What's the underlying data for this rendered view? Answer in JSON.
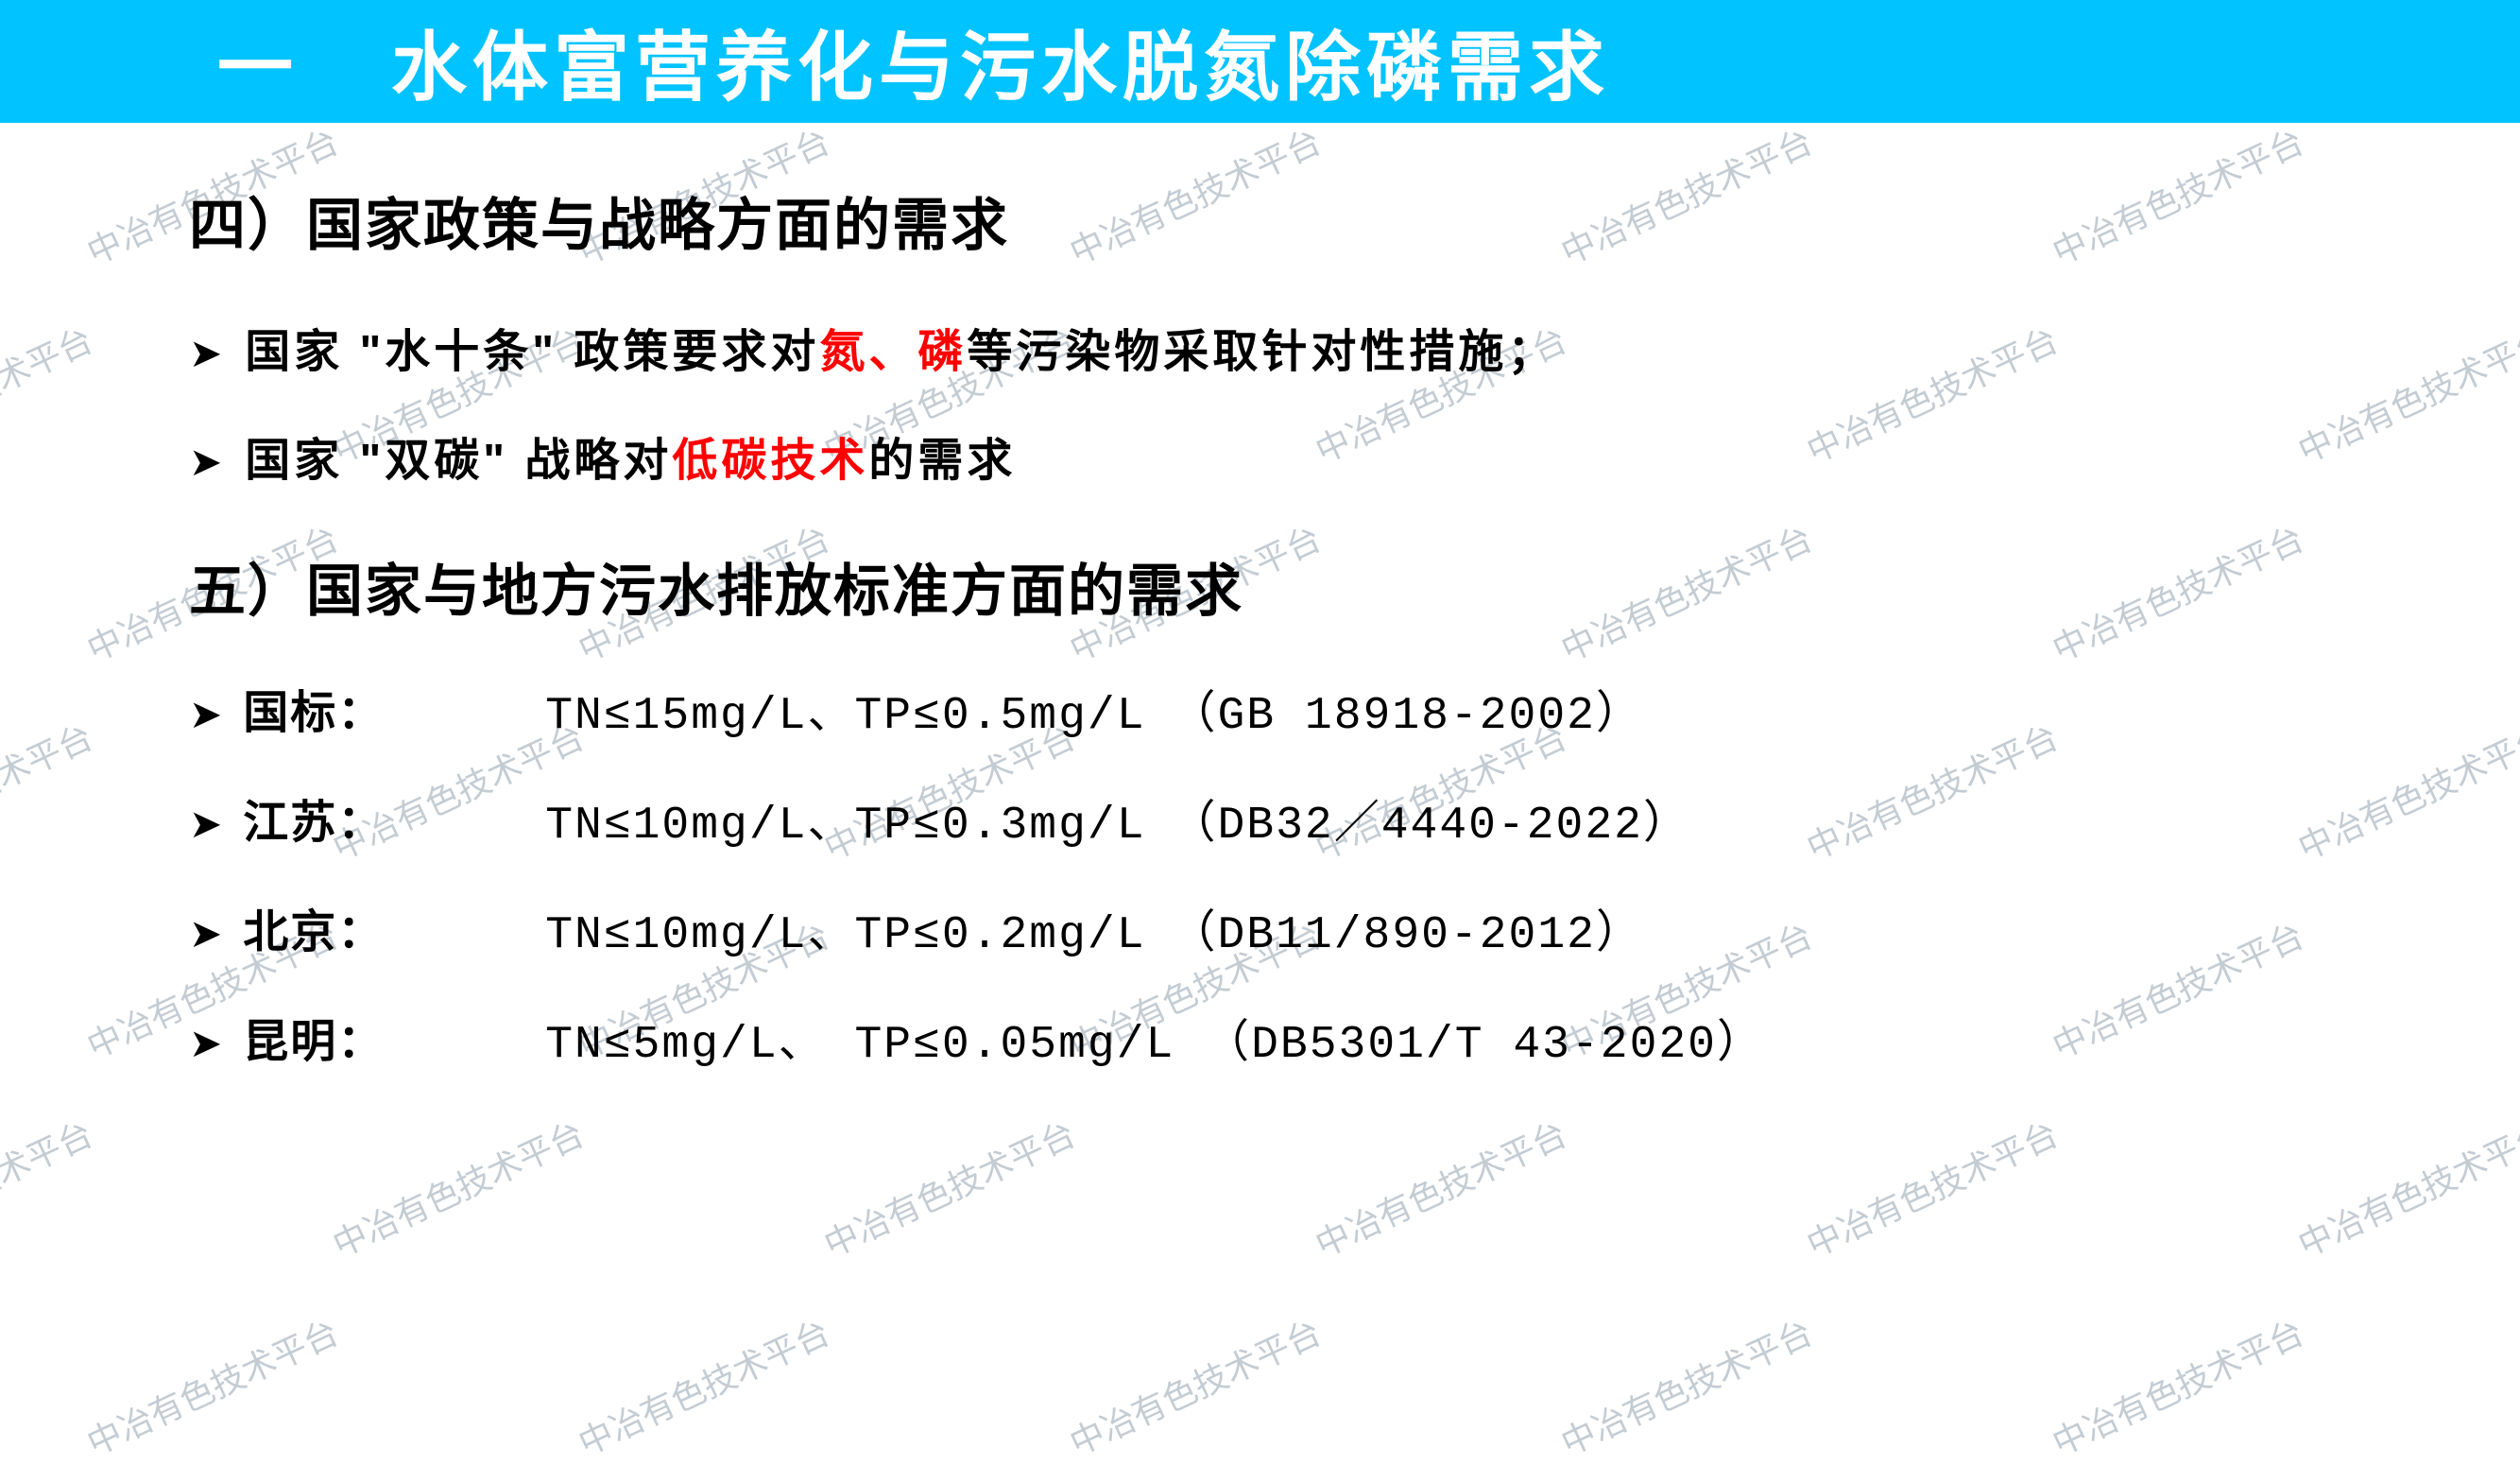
{
  "watermark": {
    "text": "中冶有色技术平台",
    "color": "#8a9ba8",
    "fontsize": 36,
    "rotation_deg": -25,
    "opacity": 0.5
  },
  "titleBar": {
    "marker": "一",
    "text": "水体富营养化与污水脱氮除磷需求",
    "background_color": "#00c3ff",
    "text_color": "#ffffff",
    "fontsize": 80
  },
  "section4": {
    "heading": "四）国家政策与战略方面的需求",
    "bullets": [
      {
        "marker": "➤",
        "pre1": "国家 \"水十条\" 政策要求对",
        "red1": "氮、磷",
        "post1": "等污染物采取针对性措施；"
      },
      {
        "marker": "➤",
        "pre1": "国家 \"双碳\" 战略对",
        "red1": "低碳技术",
        "post1": "的需求"
      }
    ]
  },
  "section5": {
    "heading": "五）国家与地方污水排放标准方面的需求",
    "standards": [
      {
        "marker": "➤",
        "label": "国标：",
        "values": "TN≤15mg/L、TP≤0.5mg/L　（GB 18918-2002）"
      },
      {
        "marker": "➤",
        "label": "江苏：",
        "values": "TN≤10mg/L、TP≤0.3mg/L　（DB32／4440-2022）"
      },
      {
        "marker": "➤",
        "label": "北京：",
        "values": "TN≤10mg/L、TP≤0.2mg/L　（DB11/890-2012）"
      },
      {
        "marker": "➤",
        "label": "昆明：",
        "values": "TN≤5mg/L、 TP≤0.05mg/L （DB5301/T 43-2020）"
      }
    ]
  },
  "colors": {
    "background": "#ffffff",
    "title_bar": "#00c3ff",
    "title_text": "#ffffff",
    "body_text": "#000000",
    "highlight_text": "#ff0000",
    "watermark": "#8a9ba8"
  },
  "typography": {
    "title_fontsize": 80,
    "heading_fontsize": 60,
    "body_fontsize": 48,
    "watermark_fontsize": 36,
    "font_family": "Microsoft YaHei"
  }
}
